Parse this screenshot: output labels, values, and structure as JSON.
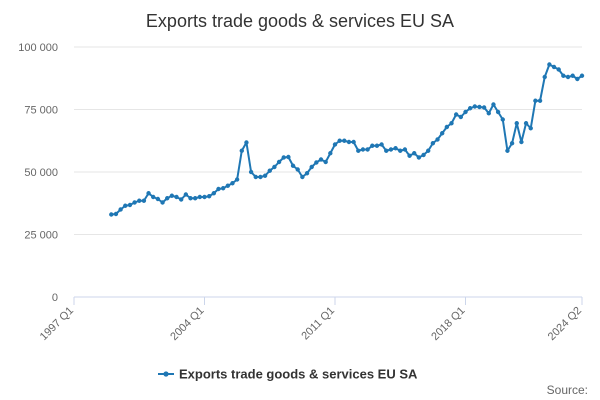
{
  "chart_data": {
    "type": "line",
    "title": "Exports trade goods & services EU SA",
    "xlabel": "",
    "ylabel": "",
    "ylim": [
      0,
      100000
    ],
    "yticks": [
      0,
      25000,
      50000,
      75000,
      100000
    ],
    "ytick_labels": [
      "0",
      "25 000",
      "50 000",
      "75 000",
      "100 000"
    ],
    "xticks": [
      "1997 Q1",
      "2004 Q1",
      "2011 Q1",
      "2018 Q1",
      "2024 Q2"
    ],
    "x_start": "1997 Q1",
    "x_end": "2024 Q2",
    "grid": "horizontal",
    "legend_position": "bottom",
    "source_label": "Source:",
    "colors": {
      "series": "#1f77b4",
      "grid": "#e6e6e6",
      "axis": "#ccd6eb"
    },
    "series": [
      {
        "name": "Exports trade goods & services EU SA",
        "x": [
          "1999 Q1",
          "1999 Q2",
          "1999 Q3",
          "1999 Q4",
          "2000 Q1",
          "2000 Q2",
          "2000 Q3",
          "2000 Q4",
          "2001 Q1",
          "2001 Q2",
          "2001 Q3",
          "2001 Q4",
          "2002 Q1",
          "2002 Q2",
          "2002 Q3",
          "2002 Q4",
          "2003 Q1",
          "2003 Q2",
          "2003 Q3",
          "2003 Q4",
          "2004 Q1",
          "2004 Q2",
          "2004 Q3",
          "2004 Q4",
          "2005 Q1",
          "2005 Q2",
          "2005 Q3",
          "2005 Q4",
          "2006 Q1",
          "2006 Q2",
          "2006 Q3",
          "2006 Q4",
          "2007 Q1",
          "2007 Q2",
          "2007 Q3",
          "2007 Q4",
          "2008 Q1",
          "2008 Q2",
          "2008 Q3",
          "2008 Q4",
          "2009 Q1",
          "2009 Q2",
          "2009 Q3",
          "2009 Q4",
          "2010 Q1",
          "2010 Q2",
          "2010 Q3",
          "2010 Q4",
          "2011 Q1",
          "2011 Q2",
          "2011 Q3",
          "2011 Q4",
          "2012 Q1",
          "2012 Q2",
          "2012 Q3",
          "2012 Q4",
          "2013 Q1",
          "2013 Q2",
          "2013 Q3",
          "2013 Q4",
          "2014 Q1",
          "2014 Q2",
          "2014 Q3",
          "2014 Q4",
          "2015 Q1",
          "2015 Q2",
          "2015 Q3",
          "2015 Q4",
          "2016 Q1",
          "2016 Q2",
          "2016 Q3",
          "2016 Q4",
          "2017 Q1",
          "2017 Q2",
          "2017 Q3",
          "2017 Q4",
          "2018 Q1",
          "2018 Q2",
          "2018 Q3",
          "2018 Q4",
          "2019 Q1",
          "2019 Q2",
          "2019 Q3",
          "2019 Q4",
          "2020 Q1",
          "2020 Q2",
          "2020 Q3",
          "2020 Q4",
          "2021 Q1",
          "2021 Q2",
          "2021 Q3",
          "2021 Q4",
          "2022 Q1",
          "2022 Q2",
          "2022 Q3",
          "2022 Q4",
          "2023 Q1",
          "2023 Q2",
          "2023 Q3",
          "2023 Q4",
          "2024 Q1",
          "2024 Q2"
        ],
        "values": [
          33000,
          33200,
          35000,
          36500,
          36800,
          37800,
          38500,
          38500,
          41500,
          40000,
          39200,
          37800,
          39500,
          40500,
          40000,
          39000,
          41000,
          39500,
          39500,
          40000,
          40000,
          40300,
          41500,
          43200,
          43500,
          44500,
          45500,
          47000,
          58500,
          61800,
          50000,
          48000,
          48000,
          48500,
          50500,
          52000,
          54000,
          55800,
          56000,
          52500,
          51000,
          48000,
          49500,
          52000,
          53800,
          55000,
          54000,
          57500,
          61000,
          62500,
          62500,
          62000,
          62000,
          58500,
          59000,
          59000,
          60500,
          60500,
          61000,
          58500,
          59000,
          59500,
          58500,
          59000,
          56500,
          57500,
          55800,
          56800,
          58500,
          61500,
          63000,
          65500,
          68000,
          69500,
          73000,
          72000,
          74000,
          75500,
          76200,
          76000,
          75800,
          73500,
          77000,
          74000,
          71000,
          58500,
          61500,
          69500,
          62000,
          69500,
          67500,
          78500,
          78500,
          88000,
          93000,
          92000,
          91000,
          88500,
          88000,
          88500,
          87200,
          88500
        ]
      }
    ]
  }
}
